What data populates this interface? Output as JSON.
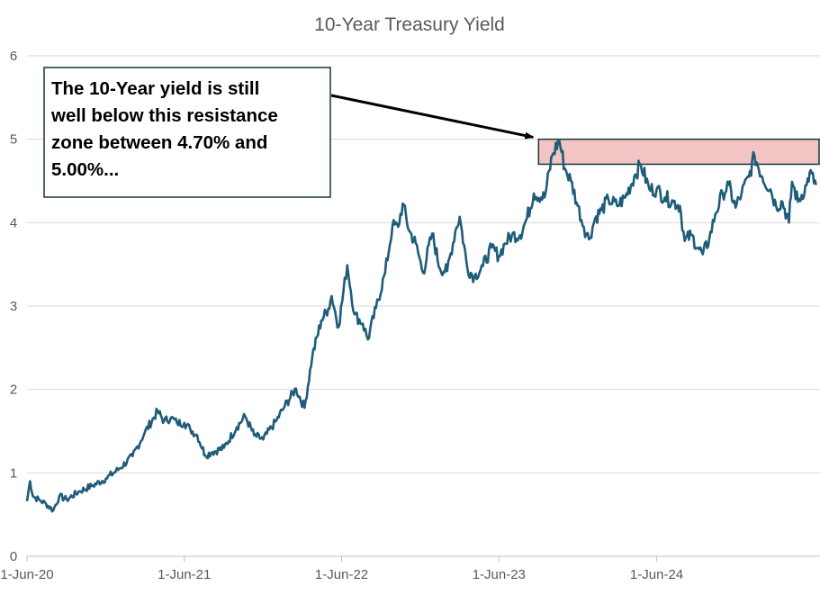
{
  "chart_data": {
    "type": "line",
    "title": "10-Year Treasury Yield",
    "xlabel": "",
    "ylabel": "",
    "xlim": [
      "2020-06-01",
      "2025-06-15"
    ],
    "ylim": [
      0,
      6
    ],
    "yticks": [
      0,
      1,
      2,
      3,
      4,
      5,
      6
    ],
    "xticks": [
      {
        "date": "2020-06-01",
        "label": "1-Jun-20"
      },
      {
        "date": "2021-06-01",
        "label": "1-Jun-21"
      },
      {
        "date": "2022-06-01",
        "label": "1-Jun-22"
      },
      {
        "date": "2023-06-01",
        "label": "1-Jun-23"
      },
      {
        "date": "2024-06-01",
        "label": "1-Jun-24"
      }
    ],
    "grid": true,
    "line_color": "#1f5c7a",
    "series": [
      {
        "x": [
          "2020-06-01",
          "2020-06-08",
          "2020-06-15",
          "2020-07-01",
          "2020-07-15",
          "2020-08-01",
          "2020-08-15",
          "2020-09-01",
          "2020-10-01",
          "2020-11-01",
          "2020-12-01",
          "2021-01-01",
          "2021-02-01",
          "2021-03-01",
          "2021-03-31",
          "2021-04-15",
          "2021-05-01",
          "2021-05-15",
          "2021-06-01",
          "2021-06-15",
          "2021-07-01",
          "2021-07-20",
          "2021-08-05",
          "2021-09-01",
          "2021-10-01",
          "2021-10-20",
          "2021-11-10",
          "2021-12-01",
          "2022-01-01",
          "2022-01-20",
          "2022-02-15",
          "2022-03-07",
          "2022-03-25",
          "2022-04-15",
          "2022-05-01",
          "2022-05-09",
          "2022-05-25",
          "2022-06-14",
          "2022-07-01",
          "2022-07-20",
          "2022-08-01",
          "2022-08-20",
          "2022-09-10",
          "2022-09-27",
          "2022-10-10",
          "2022-10-21",
          "2022-11-05",
          "2022-11-20",
          "2022-12-07",
          "2022-12-28",
          "2023-01-15",
          "2023-02-01",
          "2023-02-20",
          "2023-03-02",
          "2023-03-20",
          "2023-04-05",
          "2023-04-25",
          "2023-05-15",
          "2023-06-01",
          "2023-06-15",
          "2023-07-01",
          "2023-07-20",
          "2023-08-05",
          "2023-08-21",
          "2023-09-15",
          "2023-10-03",
          "2023-10-19",
          "2023-11-01",
          "2023-11-15",
          "2023-12-01",
          "2023-12-15",
          "2023-12-27",
          "2024-01-10",
          "2024-01-25",
          "2024-02-10",
          "2024-03-01",
          "2024-03-20",
          "2024-04-10",
          "2024-04-25",
          "2024-05-15",
          "2024-06-01",
          "2024-06-20",
          "2024-07-10",
          "2024-07-25",
          "2024-08-05",
          "2024-08-20",
          "2024-09-05",
          "2024-09-16",
          "2024-10-01",
          "2024-10-15",
          "2024-11-01",
          "2024-11-15",
          "2024-12-01",
          "2024-12-15",
          "2025-01-01",
          "2025-01-14",
          "2025-02-01",
          "2025-02-20",
          "2025-03-05",
          "2025-03-20",
          "2025-04-04",
          "2025-04-11",
          "2025-04-25",
          "2025-05-15",
          "2025-05-22",
          "2025-06-06"
        ],
        "y": [
          0.66,
          0.9,
          0.72,
          0.67,
          0.63,
          0.55,
          0.72,
          0.68,
          0.78,
          0.85,
          0.93,
          1.05,
          1.2,
          1.48,
          1.74,
          1.62,
          1.66,
          1.6,
          1.6,
          1.52,
          1.45,
          1.21,
          1.25,
          1.3,
          1.55,
          1.68,
          1.45,
          1.4,
          1.63,
          1.8,
          2.01,
          1.78,
          2.4,
          2.83,
          2.97,
          3.12,
          2.75,
          3.49,
          2.9,
          2.79,
          2.6,
          2.98,
          3.4,
          3.96,
          3.95,
          4.23,
          3.9,
          3.75,
          3.4,
          3.87,
          3.45,
          3.42,
          3.9,
          4.07,
          3.45,
          3.35,
          3.48,
          3.7,
          3.6,
          3.75,
          3.85,
          3.85,
          4.05,
          4.35,
          4.3,
          4.81,
          4.99,
          4.65,
          4.5,
          4.2,
          3.95,
          3.8,
          4.05,
          4.15,
          4.28,
          4.2,
          4.3,
          4.55,
          4.7,
          4.4,
          4.4,
          4.3,
          4.25,
          4.2,
          3.78,
          3.85,
          3.7,
          3.62,
          3.8,
          4.1,
          4.35,
          4.45,
          4.18,
          4.35,
          4.55,
          4.8,
          4.55,
          4.4,
          4.2,
          4.25,
          4.0,
          4.49,
          4.25,
          4.45,
          4.6,
          4.45
        ]
      }
    ],
    "resistance_zone": {
      "low": 4.7,
      "high": 5.0,
      "from": "2023-09-01",
      "to": "2025-06-15",
      "fill": "#f2c4c4",
      "stroke": "#17363a"
    },
    "annotation": {
      "lines": [
        "The 10-Year yield is still",
        "well below this resistance",
        "zone between 4.70% and",
        "5.00%..."
      ],
      "target_date": "2023-09-01",
      "target_value": 4.97,
      "border_color": "#17363a"
    }
  }
}
